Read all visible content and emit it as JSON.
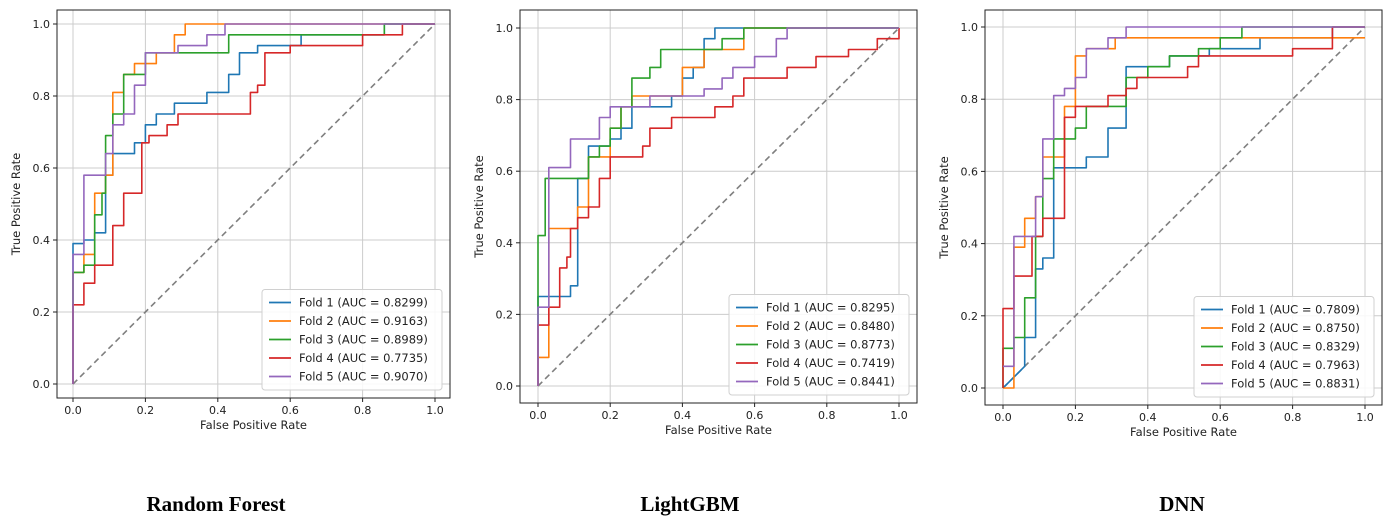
{
  "colors": {
    "fold1": "#1f77b4",
    "fold2": "#ff7f0e",
    "fold3": "#2ca02c",
    "fold4": "#d62728",
    "fold5": "#9467bd",
    "diagonal": "#7f7f7f",
    "grid": "#cccccc"
  },
  "chart_data": [
    {
      "type": "line",
      "caption": "Random Forest",
      "xlabel": "False Positive Rate",
      "ylabel": "True Positive Rate",
      "xlim": [
        0,
        1
      ],
      "ylim": [
        0,
        1
      ],
      "xticks": [
        "0.0",
        "0.2",
        "0.4",
        "0.6",
        "0.8",
        "1.0"
      ],
      "yticks": [
        "0.0",
        "0.2",
        "0.4",
        "0.6",
        "0.8",
        "1.0"
      ],
      "grid": true,
      "legend_position": "lower right",
      "diagonal": true,
      "series": [
        {
          "name": "Fold 1 (AUC = 0.8299)",
          "color": "fold1",
          "x": [
            0,
            0,
            0.03,
            0.03,
            0.06,
            0.06,
            0.09,
            0.09,
            0.11,
            0.11,
            0.17,
            0.17,
            0.2,
            0.2,
            0.23,
            0.23,
            0.28,
            0.28,
            0.37,
            0.37,
            0.43,
            0.43,
            0.46,
            0.46,
            0.51,
            0.51,
            0.63,
            0.63,
            0.86,
            0.86,
            1.0
          ],
          "y": [
            0,
            0.39,
            0.39,
            0.4,
            0.4,
            0.42,
            0.42,
            0.58,
            0.58,
            0.64,
            0.64,
            0.67,
            0.67,
            0.72,
            0.72,
            0.75,
            0.75,
            0.78,
            0.78,
            0.81,
            0.81,
            0.86,
            0.86,
            0.92,
            0.92,
            0.94,
            0.94,
            0.97,
            0.97,
            1.0,
            1.0
          ]
        },
        {
          "name": "Fold 2 (AUC = 0.9163)",
          "color": "fold2",
          "x": [
            0,
            0,
            0.03,
            0.03,
            0.06,
            0.06,
            0.09,
            0.09,
            0.11,
            0.11,
            0.14,
            0.14,
            0.17,
            0.17,
            0.23,
            0.23,
            0.28,
            0.28,
            0.31,
            0.31,
            1.0
          ],
          "y": [
            0,
            0.31,
            0.31,
            0.36,
            0.36,
            0.53,
            0.53,
            0.58,
            0.58,
            0.81,
            0.81,
            0.86,
            0.86,
            0.89,
            0.89,
            0.92,
            0.92,
            0.97,
            0.97,
            1.0,
            1.0
          ]
        },
        {
          "name": "Fold 3 (AUC = 0.8989)",
          "color": "fold3",
          "x": [
            0,
            0,
            0.03,
            0.03,
            0.06,
            0.06,
            0.08,
            0.08,
            0.09,
            0.09,
            0.11,
            0.11,
            0.14,
            0.14,
            0.2,
            0.2,
            0.26,
            0.26,
            0.43,
            0.43,
            0.86,
            0.86,
            1.0
          ],
          "y": [
            0,
            0.31,
            0.31,
            0.33,
            0.33,
            0.47,
            0.47,
            0.53,
            0.53,
            0.69,
            0.69,
            0.75,
            0.75,
            0.86,
            0.86,
            0.92,
            0.92,
            0.92,
            0.92,
            0.97,
            0.97,
            1.0,
            1.0
          ]
        },
        {
          "name": "Fold 4 (AUC = 0.7735)",
          "color": "fold4",
          "x": [
            0,
            0,
            0.03,
            0.03,
            0.06,
            0.06,
            0.08,
            0.08,
            0.11,
            0.11,
            0.14,
            0.14,
            0.14,
            0.19,
            0.19,
            0.21,
            0.21,
            0.26,
            0.26,
            0.29,
            0.29,
            0.49,
            0.49,
            0.51,
            0.51,
            0.53,
            0.53,
            0.6,
            0.6,
            0.8,
            0.8,
            0.91,
            0.91,
            1.0
          ],
          "y": [
            0,
            0.22,
            0.22,
            0.28,
            0.28,
            0.33,
            0.33,
            0.33,
            0.33,
            0.44,
            0.44,
            0.5,
            0.53,
            0.53,
            0.67,
            0.67,
            0.69,
            0.69,
            0.72,
            0.72,
            0.75,
            0.75,
            0.81,
            0.81,
            0.83,
            0.83,
            0.92,
            0.92,
            0.94,
            0.94,
            0.97,
            0.97,
            1.0,
            1.0
          ]
        },
        {
          "name": "Fold 5 (AUC = 0.9070)",
          "color": "fold5",
          "x": [
            0,
            0,
            0.03,
            0.03,
            0.09,
            0.09,
            0.11,
            0.11,
            0.14,
            0.14,
            0.17,
            0.17,
            0.2,
            0.2,
            0.29,
            0.29,
            0.37,
            0.37,
            0.42,
            0.42,
            1.0
          ],
          "y": [
            0,
            0.36,
            0.36,
            0.58,
            0.58,
            0.64,
            0.64,
            0.72,
            0.72,
            0.75,
            0.75,
            0.83,
            0.83,
            0.92,
            0.92,
            0.94,
            0.94,
            0.97,
            0.97,
            1.0,
            1.0
          ]
        }
      ]
    },
    {
      "type": "line",
      "caption": "LightGBM",
      "xlabel": "False Positive Rate",
      "ylabel": "True Positive Rate",
      "xlim": [
        0,
        1
      ],
      "ylim": [
        0,
        1
      ],
      "xticks": [
        "0.0",
        "0.2",
        "0.4",
        "0.6",
        "0.8",
        "1.0"
      ],
      "yticks": [
        "0.0",
        "0.2",
        "0.4",
        "0.6",
        "0.8",
        "1.0"
      ],
      "grid": true,
      "legend_position": "lower right",
      "diagonal": true,
      "series": [
        {
          "name": "Fold 1 (AUC = 0.8295)",
          "color": "fold1",
          "x": [
            0,
            0,
            0.06,
            0.06,
            0.09,
            0.09,
            0.11,
            0.11,
            0.14,
            0.14,
            0.2,
            0.2,
            0.23,
            0.23,
            0.26,
            0.26,
            0.37,
            0.37,
            0.4,
            0.4,
            0.43,
            0.43,
            0.46,
            0.46,
            0.49,
            0.49,
            1.0
          ],
          "y": [
            0,
            0.25,
            0.25,
            0.25,
            0.25,
            0.28,
            0.28,
            0.58,
            0.58,
            0.67,
            0.67,
            0.69,
            0.69,
            0.72,
            0.72,
            0.78,
            0.78,
            0.81,
            0.81,
            0.86,
            0.86,
            0.89,
            0.89,
            0.97,
            0.97,
            1.0,
            1.0
          ]
        },
        {
          "name": "Fold 2 (AUC = 0.8480)",
          "color": "fold2",
          "x": [
            0,
            0,
            0.03,
            0.03,
            0.11,
            0.11,
            0.14,
            0.14,
            0.2,
            0.2,
            0.23,
            0.23,
            0.26,
            0.26,
            0.4,
            0.4,
            0.46,
            0.46,
            0.57,
            0.57,
            1.0
          ],
          "y": [
            0,
            0.08,
            0.08,
            0.44,
            0.44,
            0.5,
            0.5,
            0.64,
            0.64,
            0.72,
            0.72,
            0.78,
            0.78,
            0.81,
            0.81,
            0.89,
            0.89,
            0.94,
            0.94,
            1.0,
            1.0
          ]
        },
        {
          "name": "Fold 3 (AUC = 0.8773)",
          "color": "fold3",
          "x": [
            0,
            0,
            0.02,
            0.02,
            0.14,
            0.14,
            0.17,
            0.17,
            0.2,
            0.2,
            0.23,
            0.23,
            0.26,
            0.26,
            0.29,
            0.29,
            0.31,
            0.31,
            0.34,
            0.34,
            0.43,
            0.43,
            0.51,
            0.51,
            0.57,
            0.57,
            1.0
          ],
          "y": [
            0,
            0.42,
            0.42,
            0.58,
            0.58,
            0.64,
            0.64,
            0.67,
            0.67,
            0.72,
            0.72,
            0.78,
            0.78,
            0.86,
            0.86,
            0.86,
            0.86,
            0.89,
            0.89,
            0.94,
            0.94,
            0.94,
            0.94,
            0.97,
            0.97,
            1.0,
            1.0
          ]
        },
        {
          "name": "Fold 4 (AUC = 0.7419)",
          "color": "fold4",
          "x": [
            0,
            0,
            0.03,
            0.03,
            0.06,
            0.06,
            0.08,
            0.08,
            0.09,
            0.09,
            0.11,
            0.11,
            0.14,
            0.14,
            0.17,
            0.17,
            0.2,
            0.2,
            0.29,
            0.29,
            0.31,
            0.31,
            0.37,
            0.37,
            0.43,
            0.43,
            0.49,
            0.49,
            0.54,
            0.54,
            0.57,
            0.57,
            0.6,
            0.6,
            0.69,
            0.69,
            0.77,
            0.77,
            0.86,
            0.86,
            0.94,
            0.94,
            1.0,
            1.0
          ],
          "y": [
            0,
            0.17,
            0.17,
            0.22,
            0.22,
            0.33,
            0.33,
            0.36,
            0.36,
            0.44,
            0.44,
            0.47,
            0.47,
            0.5,
            0.5,
            0.58,
            0.58,
            0.64,
            0.64,
            0.67,
            0.67,
            0.72,
            0.72,
            0.75,
            0.75,
            0.75,
            0.75,
            0.78,
            0.78,
            0.81,
            0.81,
            0.86,
            0.86,
            0.86,
            0.86,
            0.89,
            0.89,
            0.92,
            0.92,
            0.94,
            0.94,
            0.97,
            0.97,
            1.0
          ]
        },
        {
          "name": "Fold 5 (AUC = 0.8441)",
          "color": "fold5",
          "x": [
            0,
            0,
            0.03,
            0.03,
            0.09,
            0.09,
            0.17,
            0.17,
            0.2,
            0.2,
            0.31,
            0.31,
            0.46,
            0.46,
            0.51,
            0.51,
            0.54,
            0.54,
            0.6,
            0.6,
            0.66,
            0.66,
            0.69,
            0.69,
            1.0
          ],
          "y": [
            0,
            0.22,
            0.22,
            0.61,
            0.61,
            0.69,
            0.69,
            0.75,
            0.75,
            0.78,
            0.78,
            0.81,
            0.81,
            0.83,
            0.83,
            0.86,
            0.86,
            0.89,
            0.89,
            0.92,
            0.92,
            0.97,
            0.97,
            1.0,
            1.0
          ]
        }
      ]
    },
    {
      "type": "line",
      "caption": "DNN",
      "xlabel": "False Positive Rate",
      "ylabel": "True Positive Rate",
      "xlim": [
        0,
        1
      ],
      "ylim": [
        0,
        1
      ],
      "xticks": [
        "0.0",
        "0.2",
        "0.4",
        "0.6",
        "0.8",
        "1.0"
      ],
      "yticks": [
        "0.0",
        "0.2",
        "0.4",
        "0.6",
        "0.8",
        "1.0"
      ],
      "grid": true,
      "legend_position": "lower right",
      "diagonal": true,
      "series": [
        {
          "name": "Fold 1 (AUC = 0.7809)",
          "color": "fold1",
          "x": [
            0,
            0.03,
            0.06,
            0.06,
            0.09,
            0.09,
            0.11,
            0.11,
            0.14,
            0.14,
            0.23,
            0.23,
            0.29,
            0.29,
            0.34,
            0.34,
            0.37,
            0.37,
            0.46,
            0.46,
            0.57,
            0.57,
            0.71,
            0.71,
            0.91,
            0.91,
            1.0
          ],
          "y": [
            0,
            0.03,
            0.06,
            0.14,
            0.14,
            0.33,
            0.33,
            0.36,
            0.36,
            0.61,
            0.61,
            0.64,
            0.64,
            0.72,
            0.72,
            0.89,
            0.89,
            0.89,
            0.89,
            0.92,
            0.92,
            0.94,
            0.94,
            0.97,
            0.97,
            1.0,
            1.0
          ]
        },
        {
          "name": "Fold 2 (AUC = 0.8750)",
          "color": "fold2",
          "x": [
            0,
            0.03,
            0.03,
            0.06,
            0.06,
            0.09,
            0.09,
            0.11,
            0.11,
            0.17,
            0.17,
            0.2,
            0.2,
            0.23,
            0.23,
            0.31,
            0.31,
            1.0
          ],
          "y": [
            0,
            0,
            0.39,
            0.39,
            0.47,
            0.47,
            0.53,
            0.53,
            0.64,
            0.64,
            0.78,
            0.78,
            0.92,
            0.92,
            0.94,
            0.94,
            0.97,
            0.97
          ]
        },
        {
          "name": "Fold 3 (AUC = 0.8329)",
          "color": "fold3",
          "x": [
            0,
            0,
            0.03,
            0.03,
            0.06,
            0.06,
            0.09,
            0.09,
            0.11,
            0.11,
            0.14,
            0.14,
            0.2,
            0.2,
            0.23,
            0.23,
            0.34,
            0.34,
            0.4,
            0.4,
            0.46,
            0.46,
            0.54,
            0.54,
            0.6,
            0.6,
            0.66,
            0.66,
            1.0
          ],
          "y": [
            0,
            0.11,
            0.11,
            0.14,
            0.14,
            0.25,
            0.25,
            0.42,
            0.42,
            0.58,
            0.58,
            0.69,
            0.69,
            0.72,
            0.72,
            0.78,
            0.78,
            0.86,
            0.86,
            0.89,
            0.89,
            0.92,
            0.92,
            0.94,
            0.94,
            0.97,
            0.97,
            1.0,
            1.0
          ]
        },
        {
          "name": "Fold 4 (AUC = 0.7963)",
          "color": "fold4",
          "x": [
            0,
            0,
            0.03,
            0.03,
            0.08,
            0.08,
            0.11,
            0.11,
            0.14,
            0.14,
            0.17,
            0.17,
            0.2,
            0.2,
            0.26,
            0.26,
            0.29,
            0.29,
            0.34,
            0.34,
            0.37,
            0.37,
            0.46,
            0.46,
            0.51,
            0.51,
            0.54,
            0.54,
            0.8,
            0.8,
            0.91,
            0.91,
            1.0
          ],
          "y": [
            0,
            0.22,
            0.22,
            0.31,
            0.31,
            0.42,
            0.42,
            0.47,
            0.47,
            0.47,
            0.47,
            0.75,
            0.75,
            0.78,
            0.78,
            0.78,
            0.78,
            0.81,
            0.81,
            0.83,
            0.83,
            0.86,
            0.86,
            0.86,
            0.86,
            0.89,
            0.89,
            0.92,
            0.92,
            0.94,
            0.94,
            1.0,
            1.0
          ]
        },
        {
          "name": "Fold 5 (AUC = 0.8831)",
          "color": "fold5",
          "x": [
            0,
            0.03,
            0.03,
            0.09,
            0.09,
            0.11,
            0.11,
            0.14,
            0.14,
            0.17,
            0.17,
            0.2,
            0.2,
            0.23,
            0.23,
            0.29,
            0.29,
            0.34,
            0.34,
            1.0
          ],
          "y": [
            0.06,
            0.06,
            0.42,
            0.42,
            0.53,
            0.53,
            0.69,
            0.69,
            0.81,
            0.81,
            0.83,
            0.83,
            0.86,
            0.86,
            0.94,
            0.94,
            0.97,
            0.97,
            1.0,
            1.0
          ]
        }
      ]
    }
  ]
}
